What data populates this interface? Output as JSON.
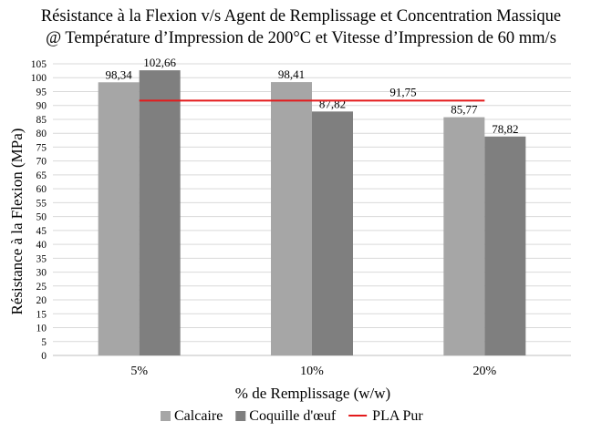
{
  "chart_data": {
    "type": "bar",
    "title": "Résistance à la Flexion v/s Agent de Remplissage et Concentration Massique",
    "subtitle": "@ Température d’Impression de 200°C et Vitesse d’Impression de 60 mm/s",
    "xlabel": "% de Remplissage (w/w)",
    "ylabel": "Résistance à la Flexion (MPa)",
    "ylim": [
      0,
      105
    ],
    "ytick_step": 5,
    "categories": [
      "5%",
      "10%",
      "20%"
    ],
    "series": [
      {
        "name": "Calcaire",
        "values": [
          98.34,
          98.41,
          85.77
        ],
        "labels": [
          "98,34",
          "98,41",
          "85,77"
        ],
        "color": "#a6a6a6"
      },
      {
        "name": "Coquille d'œuf",
        "values": [
          102.66,
          87.82,
          78.82
        ],
        "labels": [
          "102,66",
          "87,82",
          "78,82"
        ],
        "color": "#7f7f7f"
      }
    ],
    "reference_line": {
      "name": "PLA Pur",
      "value": 91.75,
      "label": "91,75",
      "color": "#e31a1c"
    },
    "grid": true,
    "legend": "bottom"
  }
}
